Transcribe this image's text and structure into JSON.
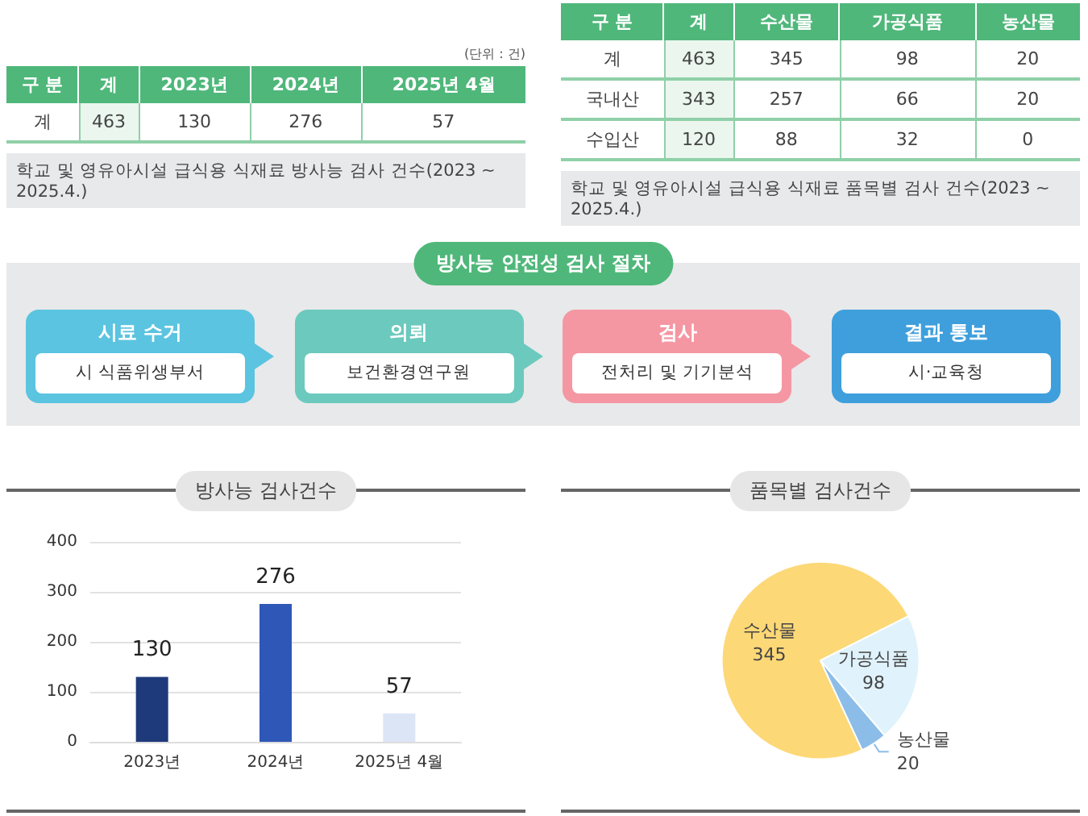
{
  "chart_data": [
    {
      "type": "heatmap",
      "ylabel": "구 분",
      "categories": [
        "계",
        "2023년",
        "2024년",
        "2025년 4월"
      ],
      "y_categories": [
        "계"
      ],
      "cells": [
        [
          463,
          130,
          276,
          57
        ]
      ],
      "data_labels": true,
      "annotations": [
        "(단위 : 건)",
        "학교 및 영유아시설 급식용 식재료 방사능 검사 건수(2023 ~ 2025.4.)"
      ]
    },
    {
      "type": "heatmap",
      "ylabel": "구 분",
      "categories": [
        "계",
        "수산물",
        "가공식품",
        "농산물"
      ],
      "y_categories": [
        "계",
        "국내산",
        "수입산"
      ],
      "cells": [
        [
          463,
          345,
          98,
          20
        ],
        [
          343,
          257,
          66,
          20
        ],
        [
          120,
          88,
          32,
          0
        ]
      ],
      "data_labels": true,
      "annotations": [
        "학교 및 영유아시설 급식용 식재료 품목별 검사 건수(2023 ~ 2025.4.)"
      ]
    },
    {
      "type": "other",
      "title": "방사능 안전성 검사 절차",
      "categories": [
        "시료 수거",
        "의뢰",
        "검사",
        "결과 통보"
      ],
      "annotations": [
        "시 식품위생부서",
        "보건환경연구원",
        "전처리 및 기기분석",
        "시·교육청"
      ],
      "colors": [
        "#5bc4e0",
        "#6cc9bd",
        "#f497a3",
        "#3f9fdc"
      ]
    },
    {
      "type": "bar",
      "title": "방사능 검사건수",
      "categories": [
        "2023년",
        "2024년",
        "2025년 4월"
      ],
      "values": [
        130,
        276,
        57
      ],
      "colors": [
        "#1e3a7b",
        "#2f57b8",
        "#dbe5f6"
      ],
      "data_labels": true,
      "ylim": [
        0,
        400
      ],
      "yticks": [
        0,
        100,
        200,
        300,
        400
      ],
      "grid": "y"
    },
    {
      "type": "pie",
      "title": "품목별 검사건수",
      "categories": [
        "수산물",
        "가공식품",
        "농산물"
      ],
      "values": [
        345,
        98,
        20
      ],
      "colors": [
        "#fdd877",
        "#e0f2fb",
        "#8cbde8"
      ],
      "data_labels": true
    }
  ]
}
